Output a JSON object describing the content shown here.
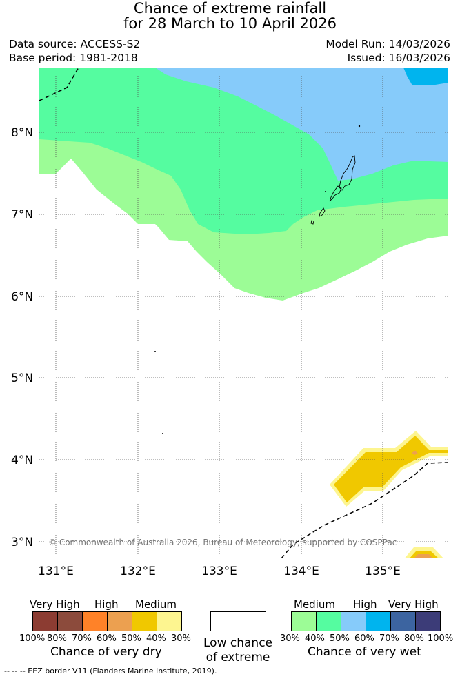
{
  "header": {
    "title_line1": "Chance of extreme rainfall",
    "title_line2": "for 28 March to 10 April 2026",
    "data_source": "Data source: ACCESS-S2",
    "base_period": "Base period: 1981-2018",
    "model_run": "Model Run: 14/03/2026",
    "issued": "Issued: 16/03/2026"
  },
  "map": {
    "lat_labels": [
      "8°N",
      "7°N",
      "6°N",
      "5°N",
      "4°N",
      "3°N"
    ],
    "lon_labels": [
      "131°E",
      "132°E",
      "133°E",
      "134°E",
      "135°E"
    ],
    "copyright": "© Commonwealth of Australia 2026, Bureau of Meteorology, supported by COSPPac",
    "colors": {
      "wet_medium_30": "#9cfc96",
      "wet_medium_40": "#55fca0",
      "wet_high_50": "#86cbfa",
      "wet_high_60": "#00b4ee",
      "dry_medium_40": "#f0c800",
      "dry_medium_30": "#fdf590",
      "dry_high_50": "#eca050"
    }
  },
  "legend": {
    "dry": {
      "labels": [
        "Very High",
        "High",
        "Medium"
      ],
      "percents": [
        "100%",
        "80%",
        "70%",
        "60%",
        "50%",
        "40%",
        "30%"
      ],
      "title": "Chance of very dry",
      "colors": [
        "#8c3c32",
        "#8c4b3c",
        "#ff8228",
        "#eca050",
        "#f0c800",
        "#fdf590"
      ]
    },
    "low": {
      "title_line1": "Low chance",
      "title_line2": "of extreme"
    },
    "wet": {
      "labels": [
        "Medium",
        "High",
        "Very High"
      ],
      "percents": [
        "30%",
        "40%",
        "50%",
        "60%",
        "70%",
        "80%",
        "100%"
      ],
      "title": "Chance of very wet",
      "colors": [
        "#9cfc96",
        "#55fca0",
        "#86cbfa",
        "#00b4ee",
        "#3c64a0",
        "#3c3c78"
      ]
    }
  },
  "footer": {
    "eez_text": "--  --  -- EEZ border V11 (Flanders Marine Institute, 2019)."
  }
}
